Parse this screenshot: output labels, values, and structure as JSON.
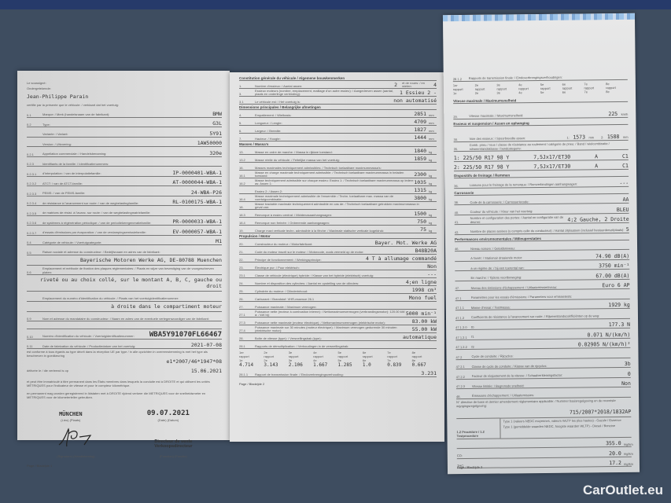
{
  "pages": [
    {
      "header_lines": [
        "Le soussigné:",
        "Ondergetekende:"
      ],
      "signatory": "Jean-Philippe Parain",
      "intro": "certifie par la présente que le véhicule: / verklaart dat het voertuig:",
      "rows": [
        {
          "num": "0.1",
          "label": "Marque: / Merk (handelsnaam van de fabrikant):",
          "value": "BMW"
        },
        {
          "num": "0.2",
          "label": "Type:",
          "value": "G3L"
        },
        {
          "num": "",
          "label": "Variante: / Variant:",
          "value": "5Y91"
        },
        {
          "num": "",
          "label": "Version: / Uitvoering:",
          "value": "1AW50000"
        },
        {
          "num": "0.2.1",
          "label": "Appellation commerciale: / Handelsbenaming:",
          "value": "320e"
        },
        {
          "num": "0.2.3",
          "label": "Identifiants de la famille: / Identificatienummers:",
          "value": ""
        },
        {
          "num": "0.2.3.1",
          "label": "d'interpolation: / van de interpolatiefamilie:",
          "value": "IP-0000401-WBA-1"
        },
        {
          "num": "0.2.3.2",
          "label": "ATCT: / van de ATCT-familie:",
          "value": "AT-0000044-WBA-1"
        },
        {
          "num": "0.2.3.3",
          "label": "PEMS: / van de PEMS-familie:",
          "value": "24-WBA-P26"
        },
        {
          "num": "0.2.3.4",
          "label": "de résistance à l'avancement sur route: / van de wegbelastingfamilie:",
          "value": "RL-0100175-WBA-1"
        },
        {
          "num": "0.2.3.5",
          "label": "de matrices de résist. à l'avanc. sur route: / van de wegbelastingmatrixfamilie:",
          "value": ""
        },
        {
          "num": "0.2.3.6",
          "label": "de systèmes à régénération périodique: / van de periodiekeregeneratiefamilie:",
          "value": "PR-0000033-WBA-1"
        },
        {
          "num": "0.2.3.7",
          "label": "d'essais d'émissions par évaporation: / van de verdampingsemissiefamilie:",
          "value": "EV-0000057-WBA-1"
        },
        {
          "num": "0.4",
          "label": "Catégorie de véhicule: / Voertuigcategorie:",
          "value": "M1"
        },
        {
          "num": "0.5",
          "label": "Raison sociale et adresse du constructeur: / Bedrijfsnaam en adres van de fabrikant:",
          "value": ""
        }
      ],
      "manufacturer": "Bayerische Motoren Werke AG, DE-80788 Muenchen",
      "plate_label": "Emplacement et méthode de fixation des plaques réglementaires: / Plaats en wijze van bevestiging van de voorgeschreven platen:",
      "plate_num": "0.6",
      "plate_value": "riveté ou au choix collé, sur le montant A, B, C, gauche ou droit",
      "vin_loc_label": "Emplacement du numéro d'identification du véhicule: / Plaats van het voertuigidentificatienummer:",
      "vin_loc_value": "à droite dans le compartiment moteur",
      "rep_num": "0.9",
      "rep_label": "Nom et adresse du mandataire du constructeur: / Naam en adres van de eventuele vertegenwoordiger van de fabrikant:",
      "vin_num": "0.10",
      "vin_label": "Numéro d'identification du véhicule: / Voertuigidentificatienummer:",
      "vin": "WBA5Y91070FL66467",
      "date_num": "0.11",
      "date_label": "Date de fabrication du véhicule: / Productiedatum van het voertuig:",
      "manufacture_date": "2021-07-08",
      "conform_text": "est conforme à tous égards au type décrit dans la réception UE par type / in alle opzichten in overeenstemming is met het type als beschreven in goedkeuring",
      "approval": "e1*2007/46*1947*08",
      "issued_label": "délivrée le / die verleend is op",
      "issued_date": "15.06.2021",
      "registration_fr": "et peut être immatriculé à titre permanent dans les États membres dans lesquels la conduite est à DROITE et qui utilisent les unités MÉTRIQUES pour l'indicateur de vitesse et pour le compteur kilométrique.",
      "registration_nl": "en permanent mag worden geregistreerd in lidstaten met à DROITE rijdend verkeer die METRIQUES voor de snelheidsmeter en METRIQUES voor de kilometerteller gebruiken.",
      "place": "MÜNCHEN",
      "place_label": "(Lieu) (Plaats)",
      "sign_date": "09.07.2021",
      "sign_date_label": "(Date) (Datum)",
      "signature_label": "(Signature) (Handtekening)",
      "function": "Directeur de vente",
      "function_nl": "Verkoopsdirecteur",
      "function_label": "(Fonction) (Functie)",
      "footer": "Page / Bladzijde 1"
    },
    {
      "section1": "Constitution générale du véhicule / Algemene bouwkenmerken",
      "rows_a": [
        {
          "num": "1.",
          "label": "Nombre d'essieux: / Aantal assen:",
          "value": "2",
          "label2": "et de roues: / en wielen:",
          "value2": "4"
        },
        {
          "num": "3.",
          "label": "Essieux moteurs (nombre, emplacement, maillage d'un autre essieu): / Aangedreven assen (aantal, plaats en onderlinge verbinding):",
          "value": "1   Essieu 2   -"
        },
        {
          "num": "3.1",
          "label": "Le véhicule est: / Het voertuig is:",
          "value": "non automatisé"
        }
      ],
      "section2": "Dimensions principales / Belangrijke afmetingen",
      "rows_b": [
        {
          "num": "4.",
          "label": "Empattement: / Wielbasis:",
          "value": "2851",
          "unit": "mm"
        },
        {
          "num": "5.",
          "label": "Longueur: / Lengte:",
          "value": "4709",
          "unit": "mm"
        },
        {
          "num": "6.",
          "label": "Largeur: / Breedte:",
          "value": "1827",
          "unit": "mm"
        },
        {
          "num": "7.",
          "label": "Hauteur: / Hoogte:",
          "value": "1444",
          "unit": "mm"
        }
      ],
      "section3": "Masses / Massa's",
      "rows_c": [
        {
          "num": "13.",
          "label": "Masse en ordre de marche: / Massa in rijklare toestand:",
          "value": "1840",
          "unit": "kg"
        },
        {
          "num": "13.2",
          "label": "Masse réelle du véhicule: / Feitelijke massa van het voertuig:",
          "value": "1859",
          "unit": "kg"
        },
        {
          "num": "16.",
          "label": "Masses maximales techniquement admissibles: / Technisch toelaatbare maximummassa's:",
          "value": "",
          "unit": ""
        },
        {
          "num": "16.1",
          "label": "Masse en charge maximale techniquement admissible: / Technisch toelaatbare maximummassa in beladen toestand:",
          "value": "2300",
          "unit": "kg"
        },
        {
          "num": "16.2",
          "label": "Masse techniquement admissible sur chaque essieu: Essieu 1: / Technisch toelaatbare maximummassa op iedere as: Assen 1:",
          "value": "1035",
          "unit": "kg"
        },
        {
          "num": "",
          "label": "Essieu 2: / Assen 2:",
          "value": "1315",
          "unit": "kg"
        },
        {
          "num": "16.4",
          "label": "Masse maximale techniquement admissible de l'ensemble: / Techn. toelaatbare max. massa van de voertuigcombinatie:",
          "value": "3800",
          "unit": "kg"
        },
        {
          "num": "18.",
          "label": "Masse tractable maximale techniquement admissible en cas de: / Technisch toelaatbare getrokken maximummassa in geval van:",
          "value": "",
          "unit": ""
        },
        {
          "num": "18.3",
          "label": "Remorque à essieu central: / Middenasaanhangwagen:",
          "value": "1500",
          "unit": "kg"
        },
        {
          "num": "18.4",
          "label": "Remorque non freinée: / Onberemde aanhangwagen:",
          "value": "750",
          "unit": "kg"
        },
        {
          "num": "19.",
          "label": "Charge maxi verticale techn. admissible à la flèche: / Maximale statische verticale kogeldruk:",
          "value": "75",
          "unit": "kg"
        }
      ],
      "section4": "Propulsion / Motor",
      "rows_d": [
        {
          "num": "20.",
          "label": "Constructeur du moteur: / Motorfabrikant:",
          "value": "Bayer. Mot. Werke AG"
        },
        {
          "num": "21.",
          "label": "Code du moteur inscrit sur le moteur: / Motorcode, zoals vermeld op de motor:",
          "value": "B48B20A"
        },
        {
          "num": "22.",
          "label": "Principe de fonctionnement: / Werkingsprincipe:",
          "value": "4 T à allumage commandé"
        },
        {
          "num": "23.",
          "label": "Électrique pur: / Puur elektrisch:",
          "value": "Non"
        },
        {
          "num": "23.1",
          "label": "Classe de véhicule (électrique) hybride: / Klasse van het hybride (elektrisch) voertuig:",
          "value": "---"
        },
        {
          "num": "24.",
          "label": "Nombre et disposition des cylindres: / Aantal en opstelling van de cilinders:",
          "value": "4;en ligne"
        },
        {
          "num": "25.",
          "label": "Cylindrée du moteur: / Cilinderinhoud:",
          "value": "1998 cm³"
        },
        {
          "num": "26.",
          "label": "Carburant: / Brandstof:  VHR-essence   26.1",
          "value": "Mono fuel"
        },
        {
          "num": "27.",
          "label": "Puissance maximale: / Maximum vermogen:",
          "value": ""
        },
        {
          "num": "27.1",
          "label": "Puissance nette (moteur à combustion interne): / Nettomaximumvermogen (verbrandingsmotor):  120.00 kW à: / kW bij:",
          "value": "5000 min⁻¹"
        },
        {
          "num": "27.3",
          "label": "Puissance nette maximale (moteur électrique): / Nettomaximumvermogen (elektrische motor):",
          "value": "83.00 kW"
        },
        {
          "num": "27.4",
          "label": "Puissance maximale sur 30 minutes (moteur électrique): / Maximum vermogen gedurende 30 minuten (elektrische motor):",
          "value": "55.00 kW"
        },
        {
          "num": "28.",
          "label": "Boîte de vitesse (type): / Versnellingsbak (type):",
          "value": "automatique"
        },
        {
          "num": "28.1",
          "label": "Rapports de démultiplication: / Verhoudingen in de versnellingsbak:",
          "value": ""
        }
      ],
      "gear_labels": [
        "1er rapport 1e",
        "2e rapport 2e",
        "3e rapport 3e",
        "4e rapport 4e",
        "5e rapport 5e",
        "6e rapport 6e",
        "7e rapport 7e",
        "8e rapport 8e"
      ],
      "gear_ratios": [
        "4.714",
        "3.143",
        "2.106",
        "1.667",
        "1.285",
        "1.0",
        "0.839",
        "0.667"
      ],
      "final_num": "28.1.1",
      "final_label": "Rapport de transmission finale: / Eindoverbrengingsverhouding:",
      "final_ratio": "3.231",
      "footer": "Page / Bladzijde 2"
    },
    {
      "final_num": "28.1.2",
      "final_label": "Rapports de transmission finale: / Eindoverbrengingsverhoudingen:",
      "gear_labels": [
        "1er rapport 1e",
        "2e rapport 2e",
        "3e rapport 3e",
        "4e rapport 4e",
        "5e rapport 5e",
        "6e rapport 6e",
        "7e rapport 7e",
        "8e rapport 8e"
      ],
      "section1": "Vitesse maximale / Maximumsnelheid",
      "speed": {
        "num": "29.",
        "label": "Vitesse maximale: / Maximumsnelheid:",
        "value": "225",
        "unit": "km/h"
      },
      "section2": "Essieux et suspension / Assen en ophanging",
      "track": {
        "num": "30.",
        "label": "Voie des essieux: / Spoorbreedte assen:",
        "axle1": "1:",
        "v1": "1573",
        "axle2": "2:",
        "v2": "1588",
        "unit": "mm"
      },
      "tyre_num": "35.",
      "tyre_label": "Comb. pneu / roue / classe de résistance au roulement / catégorie de pneu: / Band / wielcombinatie / rolweerstandsklasse / bandcategorie:",
      "tyres": [
        {
          "size": "1: 225/50 R17 98 Y",
          "rim": "7,5Jx17/ET30",
          "class": "A",
          "cat": "C1"
        },
        {
          "size": "2: 225/50 R17 98 Y",
          "rim": "7,5Jx17/ET30",
          "class": "A",
          "cat": "C1"
        }
      ],
      "section3": "Dispositifs de freinage / Remmen",
      "brake": {
        "num": "36.",
        "label": "Liaisons pour le freinage de la remorque: / Remverbindingen aanhangwagen:",
        "value": "---"
      },
      "section4": "Carrosserie",
      "rows_body": [
        {
          "num": "38.",
          "label": "Code de la carrosserie: / Carrosseriecode:",
          "value": "AA"
        },
        {
          "num": "40.",
          "label": "Couleur du véhicule: / Kleur van het voertuig:",
          "value": "BLEU"
        },
        {
          "num": "41.",
          "label": "Nombre et configuration des portes: / Aantal en configuratie van de deuren:",
          "value": "4;2 Gauche, 2 Droite"
        },
        {
          "num": "42.",
          "label": "Nombre de places assises (y compris celle du conducteur): / Aantal zitplaatsen (inclusief bestuurderszitplaats):",
          "value": "5"
        }
      ],
      "section5": "Performances environnementales / Milieuprestaties",
      "rows_env": [
        {
          "num": "46.",
          "label": "Niveau sonore: / Geluidsniveau:",
          "value": ""
        },
        {
          "num": "",
          "label": "A l'arrêt: / Stationair draaiende motor:",
          "value": "74.90 dB(A)"
        },
        {
          "num": "",
          "label": "à un régime de: / bij een toerental van:",
          "value": "3750 min⁻¹"
        },
        {
          "num": "",
          "label": "En marche: / Tijdens voortbeweging:",
          "value": "67.00 dB(A)"
        },
        {
          "num": "47.",
          "label": "Niveau des émissions d'échappement: / Uitlaatemissieniveau:",
          "value": "Euro 6 AP"
        },
        {
          "num": "47.1",
          "label": "Paramètres pour les essais d'émissions: / Parameters voor emissietests:",
          "value": ""
        },
        {
          "num": "47.1.1",
          "label": "Masse d'essai: / Testmassa:",
          "value": "1929 kg"
        },
        {
          "num": "47.1.2",
          "label": "Coefficients de résistance à l'avancement sur route: / Rijweerstandscoëfficiënten op de weg:",
          "value": ""
        },
        {
          "num": "47.1.2.0",
          "label": "f0",
          "value": "177.3 N"
        },
        {
          "num": "47.1.2.1",
          "label": "f1",
          "value": "0.071 N/(km/h)"
        },
        {
          "num": "47.1.2.2",
          "label": "f2",
          "value": "0.02905 N/(km/h)²"
        },
        {
          "num": "47.2",
          "label": "Cycle de conduite: / Rijcyclus:",
          "value": ""
        },
        {
          "num": "47.2.1",
          "label": "Classe de cycle de conduite: / Klasse van de rijcyclus:",
          "value": "3b"
        },
        {
          "num": "47.2.2",
          "label": "Facteur de réajustement de la vitesse: / Schaalverkleiningsfactor:",
          "value": "0"
        },
        {
          "num": "47.2.3",
          "label": "Vitesse limitée: / Begrensde snelheid:",
          "value": "Non"
        },
        {
          "num": "48.",
          "label": "Émissions d'échappement: / Uitlaatemissies:",
          "value": ""
        }
      ],
      "directive_label": "N° directive de base et dernier amendement réglementaire applicable: / Nummer basisregelgeving en de recentste wijzigingsregelgeving:",
      "directive": "715/2007*2018/1832AP",
      "procedure_label": "1.2 Procédure / 1.2 Testprocedure",
      "type1_fr": "Type 1 (valeurs NEDC moyennes, valeurs WLTP les plus hautes) - Gazole / Essence",
      "type1_nl": "Type 1 (gemiddelde waarden NEDC, hoogste waarden WLTP) - Diesel / Benzine",
      "emissions": [
        {
          "label": "",
          "value": "355.0",
          "unit": "mg/km"
        },
        {
          "label": "CO:",
          "value": "20.0",
          "unit": "mg/km"
        },
        {
          "label": "THC:",
          "value": "17.2",
          "unit": "mg/km"
        },
        {
          "label": "NMHC:",
          "value": "",
          "unit": ""
        }
      ],
      "footer": "Page / Bladzijde 3"
    }
  ],
  "watermark": "CarOutlet.eu"
}
